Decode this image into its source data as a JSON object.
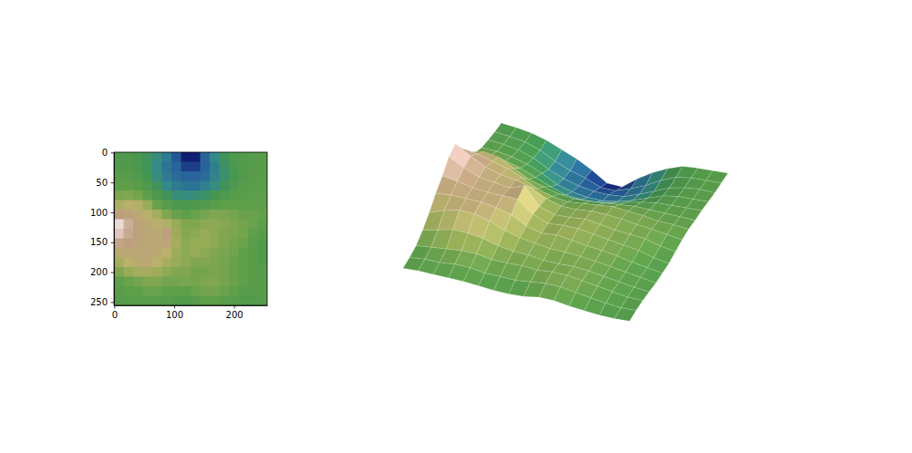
{
  "chart_data": [
    {
      "type": "image",
      "xlim": [
        -0.5,
        255.5
      ],
      "ylim": [
        255.5,
        -0.5
      ],
      "xticks": [
        0,
        100,
        200
      ],
      "yticks": [
        0,
        50,
        100,
        150,
        200,
        250
      ],
      "zlim": [
        0,
        1
      ],
      "x_edges": [
        -0.5,
        15.5,
        31.5,
        47.5,
        63.5,
        79.5,
        95.5,
        111.5,
        127.5,
        143.5,
        159.5,
        175.5,
        191.5,
        207.5,
        223.5,
        239.5,
        255.5
      ],
      "y_edges": [
        -0.5,
        15.5,
        31.5,
        47.5,
        63.5,
        79.5,
        95.5,
        111.5,
        127.5,
        143.5,
        159.5,
        175.5,
        191.5,
        207.5,
        223.5,
        239.5,
        255.5
      ],
      "cells": [
        [
          0.45,
          0.44,
          0.42,
          0.38,
          0.32,
          0.26,
          0.18,
          0.08,
          0.08,
          0.2,
          0.3,
          0.38,
          0.44,
          0.46,
          0.47,
          0.48
        ],
        [
          0.46,
          0.45,
          0.43,
          0.38,
          0.3,
          0.24,
          0.2,
          0.14,
          0.14,
          0.2,
          0.27,
          0.36,
          0.43,
          0.46,
          0.47,
          0.48
        ],
        [
          0.48,
          0.47,
          0.45,
          0.4,
          0.32,
          0.26,
          0.22,
          0.2,
          0.2,
          0.22,
          0.28,
          0.35,
          0.42,
          0.46,
          0.48,
          0.48
        ],
        [
          0.5,
          0.5,
          0.48,
          0.44,
          0.38,
          0.3,
          0.26,
          0.24,
          0.24,
          0.27,
          0.32,
          0.38,
          0.44,
          0.47,
          0.48,
          0.49
        ],
        [
          0.55,
          0.56,
          0.54,
          0.5,
          0.44,
          0.38,
          0.33,
          0.32,
          0.33,
          0.36,
          0.4,
          0.44,
          0.47,
          0.48,
          0.49,
          0.5
        ],
        [
          0.66,
          0.7,
          0.68,
          0.6,
          0.52,
          0.48,
          0.44,
          0.43,
          0.44,
          0.46,
          0.48,
          0.5,
          0.5,
          0.5,
          0.5,
          0.5
        ],
        [
          0.8,
          0.78,
          0.74,
          0.7,
          0.64,
          0.56,
          0.52,
          0.5,
          0.52,
          0.54,
          0.56,
          0.55,
          0.54,
          0.52,
          0.52,
          0.51
        ],
        [
          0.95,
          0.86,
          0.78,
          0.74,
          0.72,
          0.68,
          0.6,
          0.56,
          0.56,
          0.58,
          0.58,
          0.57,
          0.55,
          0.54,
          0.52,
          0.5
        ],
        [
          0.92,
          0.84,
          0.78,
          0.76,
          0.74,
          0.8,
          0.62,
          0.57,
          0.58,
          0.6,
          0.58,
          0.56,
          0.55,
          0.54,
          0.5,
          0.48
        ],
        [
          0.82,
          0.8,
          0.77,
          0.76,
          0.76,
          0.76,
          0.64,
          0.58,
          0.6,
          0.6,
          0.58,
          0.56,
          0.54,
          0.52,
          0.48,
          0.46
        ],
        [
          0.74,
          0.76,
          0.76,
          0.76,
          0.74,
          0.7,
          0.62,
          0.58,
          0.6,
          0.58,
          0.56,
          0.55,
          0.53,
          0.5,
          0.48,
          0.46
        ],
        [
          0.64,
          0.7,
          0.74,
          0.74,
          0.7,
          0.64,
          0.6,
          0.58,
          0.56,
          0.56,
          0.55,
          0.54,
          0.52,
          0.5,
          0.48,
          0.46
        ],
        [
          0.56,
          0.6,
          0.64,
          0.64,
          0.62,
          0.58,
          0.56,
          0.56,
          0.54,
          0.54,
          0.55,
          0.54,
          0.52,
          0.5,
          0.48,
          0.47
        ],
        [
          0.5,
          0.52,
          0.54,
          0.56,
          0.56,
          0.54,
          0.54,
          0.55,
          0.54,
          0.56,
          0.56,
          0.54,
          0.52,
          0.5,
          0.48,
          0.48
        ],
        [
          0.48,
          0.5,
          0.5,
          0.52,
          0.52,
          0.5,
          0.5,
          0.5,
          0.52,
          0.54,
          0.54,
          0.52,
          0.5,
          0.48,
          0.47,
          0.48
        ],
        [
          0.47,
          0.48,
          0.48,
          0.48,
          0.48,
          0.47,
          0.46,
          0.46,
          0.47,
          0.5,
          0.5,
          0.48,
          0.47,
          0.46,
          0.46,
          0.47
        ]
      ]
    },
    {
      "type": "surface",
      "tick_labels": false,
      "xlim": [
        -0.5,
        255.5
      ],
      "ylim": [
        -0.5,
        255.5
      ],
      "zlim": [
        0,
        1
      ],
      "x": [
        7.5,
        23.5,
        39.5,
        55.5,
        71.5,
        87.5,
        103.5,
        119.5,
        135.5,
        151.5,
        167.5,
        183.5,
        199.5,
        215.5,
        231.5,
        247.5
      ],
      "y": [
        7.5,
        23.5,
        39.5,
        55.5,
        71.5,
        87.5,
        103.5,
        119.5,
        135.5,
        151.5,
        167.5,
        183.5,
        199.5,
        215.5,
        231.5,
        247.5
      ],
      "z": [
        [
          0.45,
          0.44,
          0.42,
          0.38,
          0.32,
          0.26,
          0.18,
          0.08,
          0.08,
          0.2,
          0.3,
          0.38,
          0.44,
          0.46,
          0.47,
          0.48
        ],
        [
          0.46,
          0.45,
          0.43,
          0.38,
          0.3,
          0.24,
          0.2,
          0.14,
          0.14,
          0.2,
          0.27,
          0.36,
          0.43,
          0.46,
          0.47,
          0.48
        ],
        [
          0.48,
          0.47,
          0.45,
          0.4,
          0.32,
          0.26,
          0.22,
          0.2,
          0.2,
          0.22,
          0.28,
          0.35,
          0.42,
          0.46,
          0.48,
          0.48
        ],
        [
          0.5,
          0.5,
          0.48,
          0.44,
          0.38,
          0.3,
          0.26,
          0.24,
          0.24,
          0.27,
          0.32,
          0.38,
          0.44,
          0.47,
          0.48,
          0.49
        ],
        [
          0.55,
          0.56,
          0.54,
          0.5,
          0.44,
          0.38,
          0.33,
          0.32,
          0.33,
          0.36,
          0.4,
          0.44,
          0.47,
          0.48,
          0.49,
          0.5
        ],
        [
          0.66,
          0.7,
          0.68,
          0.6,
          0.52,
          0.48,
          0.44,
          0.43,
          0.44,
          0.46,
          0.48,
          0.5,
          0.5,
          0.5,
          0.5,
          0.5
        ],
        [
          0.8,
          0.78,
          0.74,
          0.7,
          0.64,
          0.56,
          0.52,
          0.5,
          0.52,
          0.54,
          0.56,
          0.55,
          0.54,
          0.52,
          0.52,
          0.51
        ],
        [
          0.95,
          0.86,
          0.78,
          0.74,
          0.72,
          0.68,
          0.6,
          0.56,
          0.56,
          0.58,
          0.58,
          0.57,
          0.55,
          0.54,
          0.52,
          0.5
        ],
        [
          0.92,
          0.84,
          0.78,
          0.76,
          0.74,
          0.8,
          0.62,
          0.57,
          0.58,
          0.6,
          0.58,
          0.56,
          0.55,
          0.54,
          0.5,
          0.48
        ],
        [
          0.82,
          0.8,
          0.77,
          0.76,
          0.76,
          0.76,
          0.64,
          0.58,
          0.6,
          0.6,
          0.58,
          0.56,
          0.54,
          0.52,
          0.48,
          0.46
        ],
        [
          0.74,
          0.76,
          0.76,
          0.76,
          0.74,
          0.7,
          0.62,
          0.58,
          0.6,
          0.58,
          0.56,
          0.55,
          0.53,
          0.5,
          0.48,
          0.46
        ],
        [
          0.64,
          0.7,
          0.74,
          0.74,
          0.7,
          0.64,
          0.6,
          0.58,
          0.56,
          0.56,
          0.55,
          0.54,
          0.52,
          0.5,
          0.48,
          0.46
        ],
        [
          0.56,
          0.6,
          0.64,
          0.64,
          0.62,
          0.58,
          0.56,
          0.56,
          0.54,
          0.54,
          0.55,
          0.54,
          0.52,
          0.5,
          0.48,
          0.47
        ],
        [
          0.5,
          0.52,
          0.54,
          0.56,
          0.56,
          0.54,
          0.54,
          0.55,
          0.54,
          0.56,
          0.56,
          0.54,
          0.52,
          0.5,
          0.48,
          0.48
        ],
        [
          0.48,
          0.5,
          0.5,
          0.52,
          0.52,
          0.5,
          0.5,
          0.5,
          0.52,
          0.54,
          0.54,
          0.52,
          0.5,
          0.48,
          0.47,
          0.48
        ],
        [
          0.47,
          0.48,
          0.48,
          0.48,
          0.48,
          0.47,
          0.46,
          0.46,
          0.47,
          0.5,
          0.5,
          0.48,
          0.47,
          0.46,
          0.46,
          0.47
        ]
      ]
    }
  ]
}
